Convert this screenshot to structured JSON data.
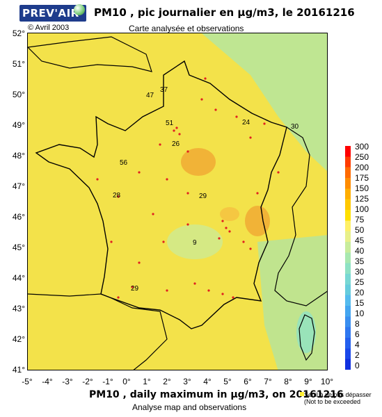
{
  "header": {
    "logo_text": "PREV'AIR",
    "title": "PM10 , pic journalier en μg/m3, le 20161216",
    "copyright": "© Avril 2003",
    "subtitle": "Carte analysée et observations"
  },
  "axes": {
    "y_ticks": [
      "52°",
      "51°",
      "50°",
      "49°",
      "48°",
      "47°",
      "46°",
      "45°",
      "44°",
      "43°",
      "42°",
      "41°"
    ],
    "x_ticks": [
      "-5°",
      "-4°",
      "-3°",
      "-2°",
      "-1°",
      "0°",
      "1°",
      "2°",
      "3°",
      "4°",
      "5°",
      "6°",
      "7°",
      "8°",
      "9°",
      "10°"
    ]
  },
  "footer": {
    "title": "PM10 , daily maximum in μg/m3, on 20161216",
    "subtitle": "Analyse map and observations"
  },
  "legend": {
    "labels": [
      "300",
      "250",
      "200",
      "175",
      "150",
      "125",
      "100",
      "75",
      "50",
      "45",
      "40",
      "35",
      "30",
      "25",
      "20",
      "15",
      "10",
      "8",
      "6",
      "4",
      "2",
      "0"
    ],
    "colors": [
      "#ff0000",
      "#ff3c00",
      "#ff6a00",
      "#ff8c00",
      "#ffae00",
      "#ffc800",
      "#ffe000",
      "#fff066",
      "#e8f08a",
      "#c8ec9c",
      "#a8e8b0",
      "#8ee2c4",
      "#78d8d4",
      "#66ccdd",
      "#55bbee",
      "#44a6f0",
      "#3a8ff0",
      "#2f78f0",
      "#2460ee",
      "#1a48ea",
      "#1030e0"
    ],
    "threshold_line1": "Seuil à ne pas dépasser",
    "threshold_line2": "(Not to be exceeded"
  },
  "map": {
    "station_values": [
      "47",
      "37",
      "51",
      "26",
      "24",
      "30",
      "56",
      "28",
      "29",
      "9",
      "29"
    ],
    "colors": {
      "background": "#f3e24a",
      "low": "#a8e8b0",
      "mid": "#8ee2c4",
      "high": "#f0a832",
      "station": "#e02020",
      "border": "#000000"
    }
  }
}
